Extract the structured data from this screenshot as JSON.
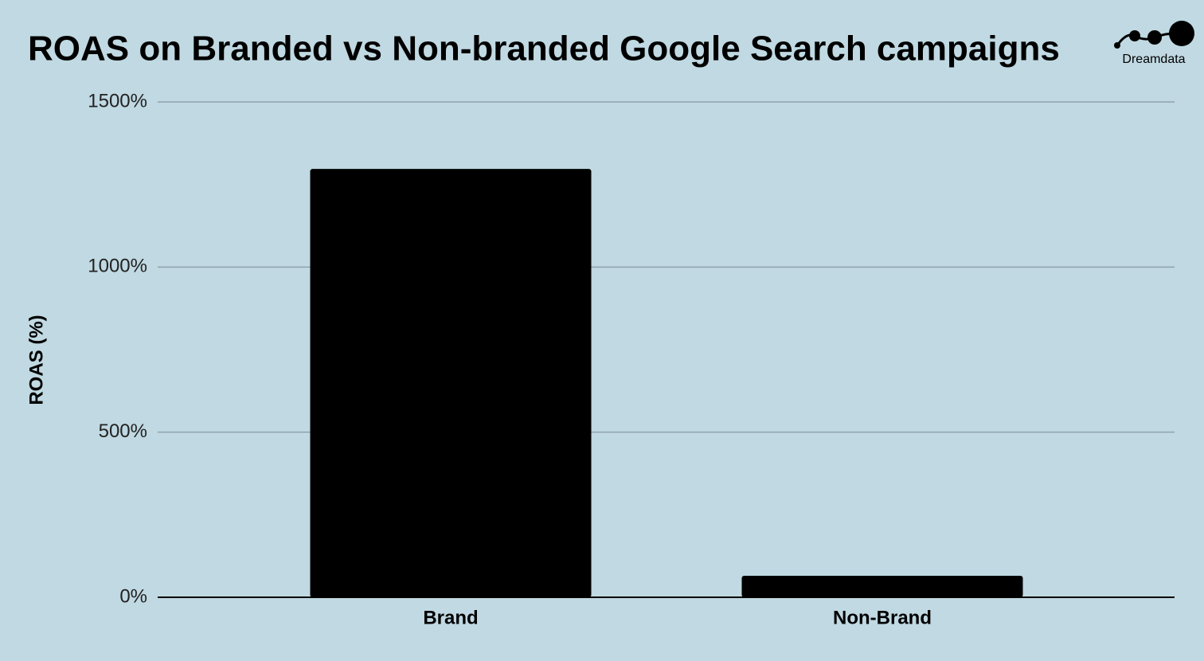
{
  "chart_data": {
    "type": "bar",
    "title": "ROAS on Branded vs Non-branded Google Search campaigns",
    "brand": "Dreamdata",
    "y_label": "ROAS (%)",
    "categories": [
      "Brand",
      "Non-Brand"
    ],
    "values": [
      1297,
      65
    ],
    "color": "#000000",
    "ylim": [
      0,
      1500
    ],
    "yticks": [
      {
        "value": 0,
        "label": "0%"
      },
      {
        "value": 500,
        "label": "500%"
      },
      {
        "value": 1000,
        "label": "1000%"
      },
      {
        "value": 1500,
        "label": "1500%"
      }
    ],
    "grid": true
  }
}
